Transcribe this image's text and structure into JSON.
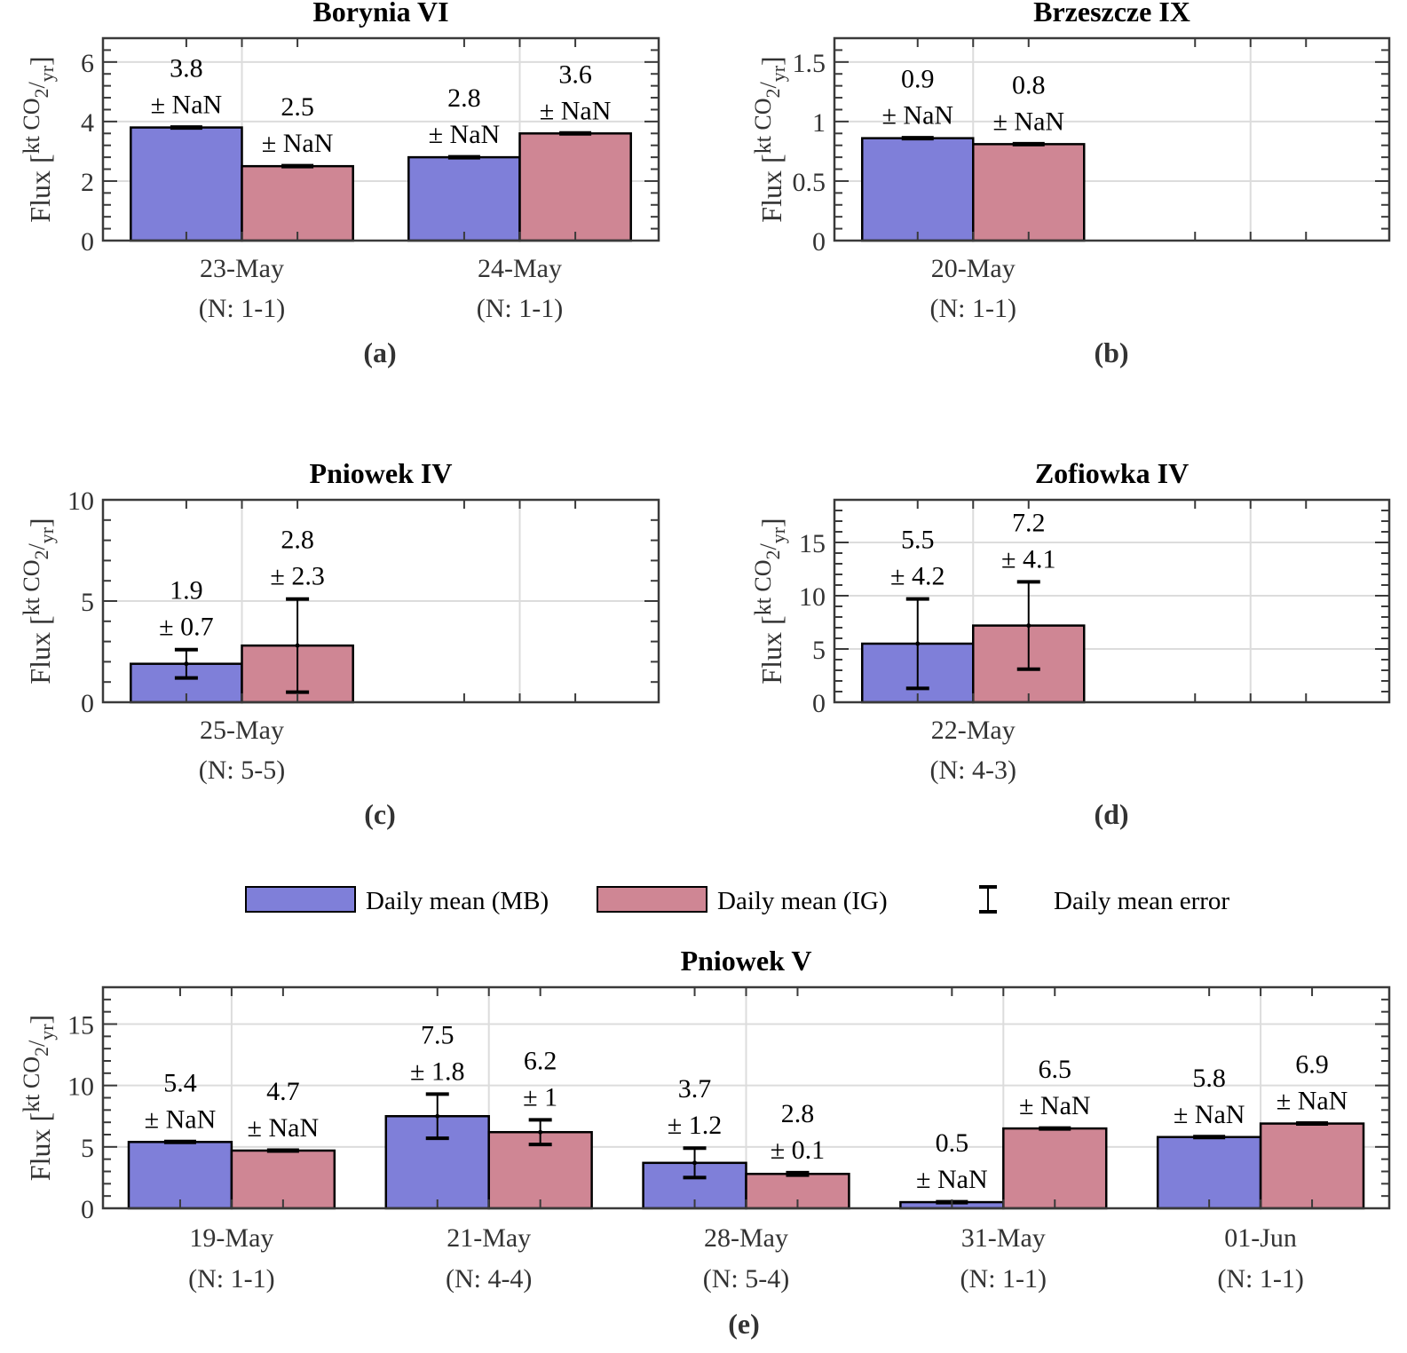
{
  "legend": {
    "items": [
      {
        "label": "Daily mean (MB)",
        "type": "bar",
        "color": "#7f7fd9"
      },
      {
        "label": "Daily mean (IG)",
        "type": "bar",
        "color": "#cf8694"
      },
      {
        "label": "Daily mean error",
        "type": "errorbar",
        "color": "#000000"
      }
    ]
  },
  "ylabel_parts": {
    "prefix": "Flux [",
    "sup": "kt CO",
    "sub": "2",
    "slash": "/",
    "sub2": "yr",
    "suffix": "]"
  },
  "chart_data": [
    {
      "type": "bar",
      "panel": "(a)",
      "title": "Borynia VI",
      "ylabel": "Flux [kt CO2/yr]",
      "ylim": [
        0,
        6.8
      ],
      "yticks": [
        0,
        2,
        4,
        6
      ],
      "grid": true,
      "categories": [
        "23-May",
        "24-May"
      ],
      "counts": [
        "(N: 1-1)",
        "(N: 1-1)"
      ],
      "series": [
        {
          "name": "Daily mean (MB)",
          "values": [
            3.8,
            2.8
          ],
          "errors": [
            null,
            null
          ],
          "labels": [
            "3.8",
            "2.8"
          ],
          "error_labels": [
            "± NaN",
            "± NaN"
          ]
        },
        {
          "name": "Daily mean (IG)",
          "values": [
            2.5,
            3.6
          ],
          "errors": [
            null,
            null
          ],
          "labels": [
            "2.5",
            "3.6"
          ],
          "error_labels": [
            "± NaN",
            "± NaN"
          ]
        }
      ]
    },
    {
      "type": "bar",
      "panel": "(b)",
      "title": "Brzeszcze IX",
      "ylabel": "Flux [kt CO2/yr]",
      "ylim": [
        0,
        1.7
      ],
      "yticks": [
        0,
        0.5,
        1,
        1.5
      ],
      "grid": true,
      "categories": [
        "20-May"
      ],
      "counts": [
        "(N: 1-1)"
      ],
      "series": [
        {
          "name": "Daily mean (MB)",
          "values": [
            0.86
          ],
          "errors": [
            null
          ],
          "labels": [
            "0.9"
          ],
          "error_labels": [
            "± NaN"
          ]
        },
        {
          "name": "Daily mean (IG)",
          "values": [
            0.81
          ],
          "errors": [
            null
          ],
          "labels": [
            "0.8"
          ],
          "error_labels": [
            "± NaN"
          ]
        }
      ]
    },
    {
      "type": "bar",
      "panel": "(c)",
      "title": "Pniowek IV",
      "ylabel": "Flux [kt CO2/yr]",
      "ylim": [
        0,
        10
      ],
      "yticks": [
        0,
        5,
        10
      ],
      "grid": true,
      "categories": [
        "25-May"
      ],
      "counts": [
        "(N: 5-5)"
      ],
      "series": [
        {
          "name": "Daily mean (MB)",
          "values": [
            1.9
          ],
          "errors": [
            0.7
          ],
          "labels": [
            "1.9"
          ],
          "error_labels": [
            "± 0.7"
          ]
        },
        {
          "name": "Daily mean (IG)",
          "values": [
            2.8
          ],
          "errors": [
            2.3
          ],
          "labels": [
            "2.8"
          ],
          "error_labels": [
            "± 2.3"
          ]
        }
      ]
    },
    {
      "type": "bar",
      "panel": "(d)",
      "title": "Zofiowka IV",
      "ylabel": "Flux [kt CO2/yr]",
      "ylim": [
        0,
        19
      ],
      "yticks": [
        0,
        5,
        10,
        15
      ],
      "grid": true,
      "categories": [
        "22-May"
      ],
      "counts": [
        "(N: 4-3)"
      ],
      "series": [
        {
          "name": "Daily mean (MB)",
          "values": [
            5.5
          ],
          "errors": [
            4.2
          ],
          "labels": [
            "5.5"
          ],
          "error_labels": [
            "± 4.2"
          ]
        },
        {
          "name": "Daily mean (IG)",
          "values": [
            7.2
          ],
          "errors": [
            4.1
          ],
          "labels": [
            "7.2"
          ],
          "error_labels": [
            "± 4.1"
          ]
        }
      ]
    },
    {
      "type": "bar",
      "panel": "(e)",
      "title": "Pniowek V",
      "ylabel": "Flux [kt CO2/yr]",
      "ylim": [
        0,
        18
      ],
      "yticks": [
        0,
        5,
        10,
        15
      ],
      "grid": true,
      "categories": [
        "19-May",
        "21-May",
        "28-May",
        "31-May",
        "01-Jun"
      ],
      "counts": [
        "(N: 1-1)",
        "(N: 4-4)",
        "(N: 5-4)",
        "(N: 1-1)",
        "(N: 1-1)"
      ],
      "series": [
        {
          "name": "Daily mean (MB)",
          "values": [
            5.4,
            7.5,
            3.7,
            0.5,
            5.8
          ],
          "errors": [
            null,
            1.8,
            1.2,
            null,
            null
          ],
          "labels": [
            "5.4",
            "7.5",
            "3.7",
            "0.5",
            "5.8"
          ],
          "error_labels": [
            "± NaN",
            "± 1.8",
            "± 1.2",
            "± NaN",
            "± NaN"
          ]
        },
        {
          "name": "Daily mean (IG)",
          "values": [
            4.7,
            6.2,
            2.8,
            6.5,
            6.9
          ],
          "errors": [
            null,
            1.0,
            0.1,
            null,
            null
          ],
          "labels": [
            "4.7",
            "6.2",
            "2.8",
            "6.5",
            "6.9"
          ],
          "error_labels": [
            "± NaN",
            "± 1",
            "± 0.1",
            "± NaN",
            "± NaN"
          ]
        }
      ]
    }
  ]
}
